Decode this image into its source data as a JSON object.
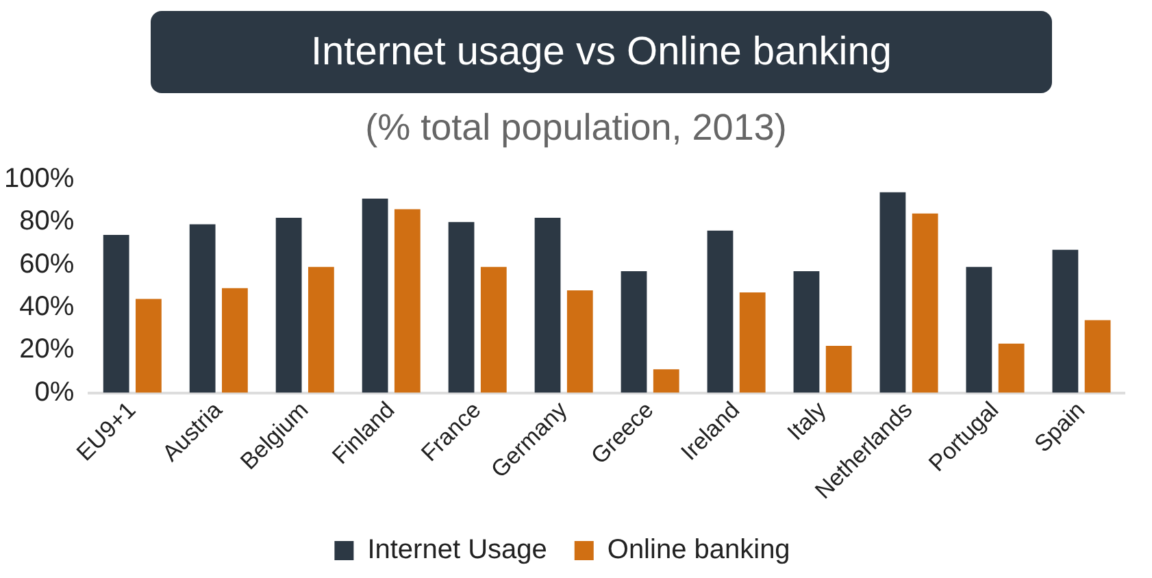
{
  "chart_data": {
    "type": "bar",
    "title": "Internet usage vs Online banking",
    "subtitle": "(% total population, 2013)",
    "categories": [
      "EU9+1",
      "Austria",
      "Belgium",
      "Finland",
      "France",
      "Germany",
      "Greece",
      "Ireland",
      "Italy",
      "Netherlands",
      "Portugal",
      "Spain"
    ],
    "series": [
      {
        "name": "Internet Usage",
        "color": "#2c3844",
        "values": [
          74,
          79,
          82,
          91,
          80,
          82,
          57,
          76,
          57,
          94,
          59,
          67
        ]
      },
      {
        "name": "Online banking",
        "color": "#d06f13",
        "values": [
          44,
          49,
          59,
          86,
          59,
          48,
          11,
          47,
          22,
          84,
          23,
          34
        ]
      }
    ],
    "ylim": [
      0,
      100
    ],
    "yticks": [
      {
        "value": 0,
        "label": "0%"
      },
      {
        "value": 20,
        "label": "20%"
      },
      {
        "value": 40,
        "label": "40%"
      },
      {
        "value": 60,
        "label": "60%"
      },
      {
        "value": 80,
        "label": "80%"
      },
      {
        "value": 100,
        "label": "100%"
      }
    ],
    "grid": false,
    "legend": "bottom"
  }
}
